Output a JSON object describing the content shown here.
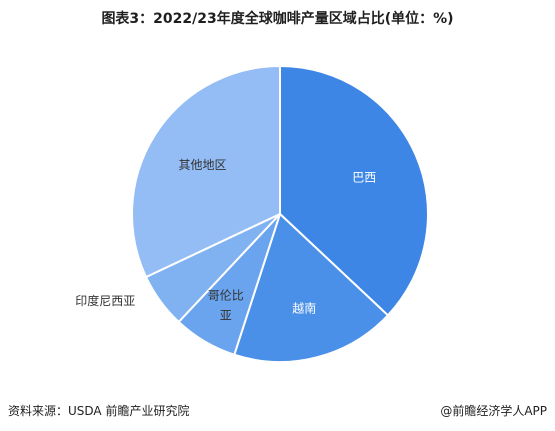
{
  "title": "图表3：2022/23年度全球咖啡产量区域占比(单位：%)",
  "chart_data": {
    "type": "pie",
    "categories": [
      "巴西",
      "越南",
      "哥伦比亚",
      "印度尼西亚",
      "其他地区"
    ],
    "values": [
      37,
      18,
      7,
      6,
      32
    ],
    "colors": [
      "#3d86e6",
      "#4a8fe8",
      "#6aa3ee",
      "#80b1f1",
      "#93bdf4"
    ],
    "label_colors": [
      "#ffffff",
      "#ffffff",
      "#333333",
      "#333333",
      "#333333"
    ],
    "start_angle_deg": 0,
    "direction": "clockwise"
  },
  "labels_display": {
    "colombia_line1": "哥伦比",
    "colombia_line2": "亚"
  },
  "footer": {
    "source": "资料来源：USDA 前瞻产业研究院",
    "brand": "@前瞻经济学人APP"
  }
}
